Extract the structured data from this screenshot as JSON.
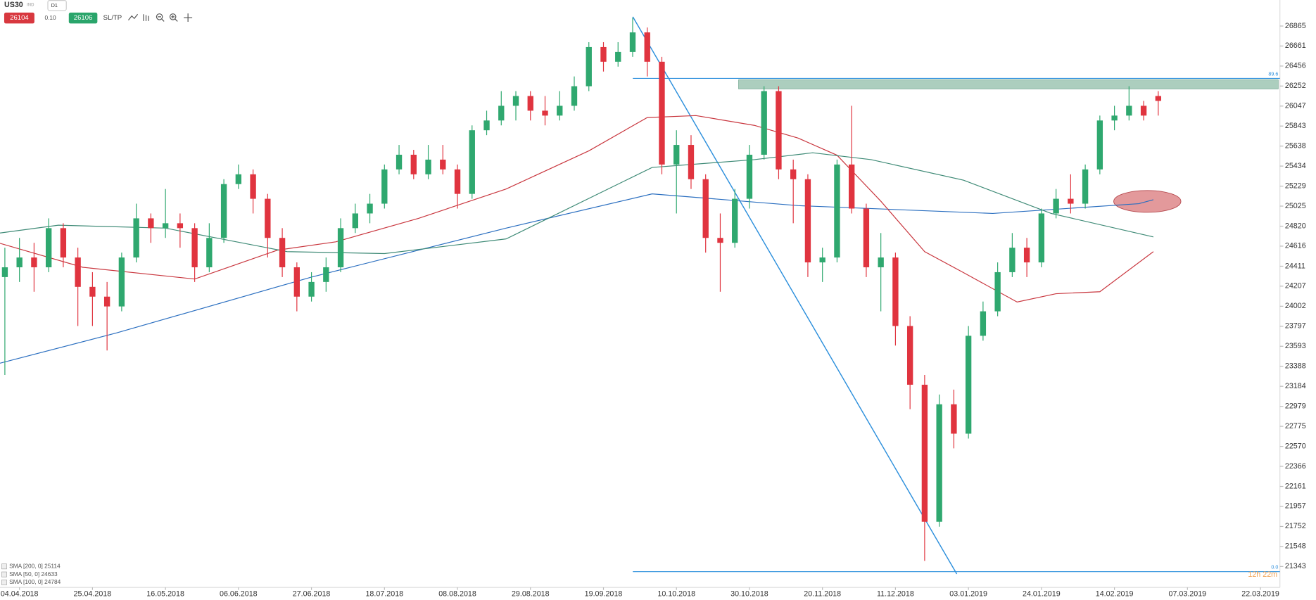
{
  "toolbar": {
    "symbol": "US30",
    "market": "IND",
    "timeframe": "D1",
    "bid": "26104",
    "spread": "0.10",
    "ask": "26106",
    "sltp": "SL/TP"
  },
  "chart_data": {
    "type": "candlestick",
    "up_color": "#2fa86f",
    "down_color": "#e0343f",
    "xlim": [
      -4,
      259
    ],
    "ylim": [
      21129,
      27131
    ],
    "xticks": [
      {
        "value": 0,
        "label": "04.04.2018"
      },
      {
        "value": 15,
        "label": "25.04.2018"
      },
      {
        "value": 30,
        "label": "16.05.2018"
      },
      {
        "value": 45,
        "label": "06.06.2018"
      },
      {
        "value": 60,
        "label": "27.06.2018"
      },
      {
        "value": 75,
        "label": "18.07.2018"
      },
      {
        "value": 90,
        "label": "08.08.2018"
      },
      {
        "value": 105,
        "label": "29.08.2018"
      },
      {
        "value": 120,
        "label": "19.09.2018"
      },
      {
        "value": 135,
        "label": "10.10.2018"
      },
      {
        "value": 150,
        "label": "30.10.2018"
      },
      {
        "value": 165,
        "label": "20.11.2018"
      },
      {
        "value": 180,
        "label": "11.12.2018"
      },
      {
        "value": 195,
        "label": "03.01.2019"
      },
      {
        "value": 210,
        "label": "24.01.2019"
      },
      {
        "value": 225,
        "label": "14.02.2019"
      },
      {
        "value": 240,
        "label": "07.03.2019"
      },
      {
        "value": 255,
        "label": "22.03.2019"
      }
    ],
    "yticks": [
      26865,
      26661,
      26456,
      26252,
      26047,
      25843,
      25638,
      25434,
      25229,
      25025,
      24820,
      24616,
      24411,
      24207,
      24002,
      23797,
      23593,
      23388,
      23184,
      22979,
      22775,
      22570,
      22366,
      22161,
      21957,
      21752,
      21548,
      21343
    ],
    "x": [
      -3,
      0,
      3,
      6,
      9,
      12,
      15,
      18,
      21,
      24,
      27,
      30,
      33,
      36,
      39,
      42,
      45,
      48,
      51,
      54,
      57,
      60,
      63,
      66,
      69,
      72,
      75,
      78,
      81,
      84,
      87,
      90,
      93,
      96,
      99,
      102,
      105,
      108,
      111,
      114,
      117,
      120,
      123,
      126,
      129,
      132,
      135,
      138,
      141,
      144,
      147,
      150,
      153,
      156,
      159,
      162,
      165,
      168,
      171,
      174,
      177,
      180,
      183,
      186,
      189,
      192,
      195,
      198,
      201,
      204,
      207,
      210,
      213,
      216,
      219,
      222,
      225,
      228,
      231,
      234
    ],
    "open": [
      24300,
      24400,
      24500,
      24400,
      24800,
      24500,
      24200,
      24100,
      24000,
      24500,
      24900,
      24800,
      24850,
      24800,
      24400,
      24700,
      25250,
      25350,
      25100,
      24700,
      24400,
      24100,
      24250,
      24400,
      24800,
      24950,
      25050,
      25400,
      25550,
      25350,
      25500,
      25400,
      25150,
      25800,
      25900,
      26050,
      26150,
      26000,
      25950,
      26050,
      26250,
      26650,
      26500,
      26600,
      26800,
      26500,
      25450,
      25650,
      25300,
      24700,
      24650,
      25100,
      25550,
      26200,
      25400,
      25300,
      24450,
      24500,
      25450,
      25000,
      24400,
      24500,
      23800,
      23200,
      21800,
      23000,
      22700,
      23700,
      23950,
      24350,
      24600,
      24450,
      24950,
      25100,
      25050,
      25400,
      25900,
      25950,
      26050,
      26150
    ],
    "high": [
      24600,
      24700,
      24650,
      24900,
      24850,
      24600,
      24350,
      24250,
      24550,
      25050,
      24950,
      25200,
      24950,
      24850,
      24850,
      25300,
      25450,
      25400,
      25150,
      24800,
      24450,
      24350,
      24500,
      24900,
      25050,
      25150,
      25450,
      25650,
      25600,
      25650,
      25650,
      25450,
      25850,
      26000,
      26200,
      26200,
      26200,
      26150,
      26200,
      26350,
      26700,
      26700,
      26700,
      26950,
      26850,
      26550,
      25800,
      25750,
      25350,
      24950,
      25200,
      25650,
      26250,
      26250,
      25500,
      25350,
      24600,
      25500,
      26050,
      25050,
      24750,
      24550,
      23900,
      23300,
      23100,
      23150,
      23800,
      24050,
      24450,
      24750,
      24700,
      25000,
      25200,
      25350,
      25450,
      25950,
      26050,
      26250,
      26100,
      26200
    ],
    "low": [
      23300,
      24250,
      24150,
      24350,
      24400,
      23800,
      23800,
      23550,
      23950,
      24450,
      24650,
      24700,
      24600,
      24250,
      24350,
      24650,
      25200,
      24950,
      24500,
      24300,
      23950,
      24050,
      24150,
      24350,
      24750,
      24850,
      25000,
      25350,
      25300,
      25300,
      25350,
      25000,
      25100,
      25750,
      25850,
      25900,
      25900,
      25850,
      25900,
      26000,
      26200,
      26400,
      26450,
      26550,
      26350,
      25350,
      24950,
      25200,
      24550,
      24150,
      24600,
      25000,
      25500,
      25300,
      24850,
      24300,
      24250,
      24450,
      24950,
      24300,
      23950,
      23600,
      22950,
      21400,
      21750,
      22550,
      22650,
      23650,
      23900,
      24300,
      24300,
      24400,
      24900,
      24950,
      25000,
      25350,
      25800,
      25900,
      25900,
      25950
    ],
    "close": [
      24400,
      24500,
      24400,
      24800,
      24500,
      24200,
      24100,
      24000,
      24500,
      24900,
      24800,
      24850,
      24800,
      24400,
      24700,
      25250,
      25350,
      25100,
      24700,
      24400,
      24100,
      24250,
      24400,
      24800,
      24950,
      25050,
      25400,
      25550,
      25350,
      25500,
      25400,
      25150,
      25800,
      25900,
      26050,
      26150,
      26000,
      25950,
      26050,
      26250,
      26650,
      26500,
      26600,
      26800,
      26500,
      25450,
      25650,
      25300,
      24700,
      24650,
      25100,
      25550,
      26200,
      25400,
      25300,
      24450,
      24500,
      25450,
      25000,
      24400,
      24500,
      23800,
      23200,
      21800,
      23000,
      22700,
      23700,
      23950,
      24350,
      24600,
      24450,
      24950,
      25100,
      25050,
      25400,
      25900,
      25950,
      26050,
      25950,
      26100
    ],
    "series": [
      {
        "name": "SMA [200, 0] 25114",
        "color": "#2b6fc0",
        "x": [
          -4,
          20,
          60,
          100,
          130,
          160,
          200,
          230,
          233
        ],
        "values": [
          23420,
          23730,
          24300,
          24800,
          25150,
          25030,
          24950,
          25050,
          25090
        ]
      },
      {
        "name": "SMA [50, 0] 24633",
        "color": "#c9373f",
        "x": [
          -4,
          13,
          36,
          53,
          65,
          82,
          100,
          117,
          129,
          139,
          151,
          160,
          168,
          177,
          186,
          194,
          205,
          213,
          222,
          233
        ],
        "values": [
          24645,
          24400,
          24280,
          24575,
          24660,
          24900,
          25200,
          25590,
          25930,
          25950,
          25850,
          25720,
          25545,
          25075,
          24560,
          24345,
          24045,
          24130,
          24150,
          24560
        ]
      },
      {
        "name": "SMA [100, 0] 24784",
        "color": "#3e8a76",
        "x": [
          -4,
          8,
          30,
          55,
          75,
          100,
          130,
          151,
          163,
          175,
          194,
          212,
          233
        ],
        "values": [
          24750,
          24830,
          24800,
          24560,
          24540,
          24690,
          25420,
          25500,
          25570,
          25500,
          25290,
          24950,
          24710
        ]
      }
    ],
    "levels": [
      {
        "label": "89.6",
        "value": 26330
      },
      {
        "label": "0.0",
        "value": 21290
      }
    ],
    "countdown": "12h 22m"
  }
}
